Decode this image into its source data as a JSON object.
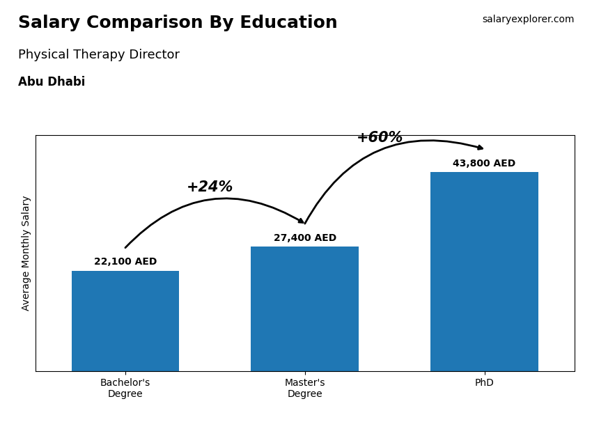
{
  "chart_data": {
    "type": "bar",
    "title": "Salary Comparison By Education",
    "subtitle": "Physical Therapy Director",
    "annotations": [
      {
        "text": "Abu Dhabi"
      },
      {
        "text": "salaryexplorer.com"
      },
      {
        "text": "+24%",
        "from": "Bachelor's\nDegree",
        "to": "Master's\nDegree"
      },
      {
        "text": "+60%",
        "from": "Master's\nDegree",
        "to": "PhD"
      }
    ],
    "ylabel": "Average Monthly Salary",
    "categories": [
      "Bachelor's\nDegree",
      "Master's\nDegree",
      "PhD"
    ],
    "values": [
      22100,
      27400,
      43800
    ],
    "value_labels": [
      "22,100 AED",
      "27,400 AED",
      "43,800 AED"
    ],
    "data_labels": true,
    "ylim": [
      0,
      52000
    ],
    "tick_labels": "x"
  }
}
